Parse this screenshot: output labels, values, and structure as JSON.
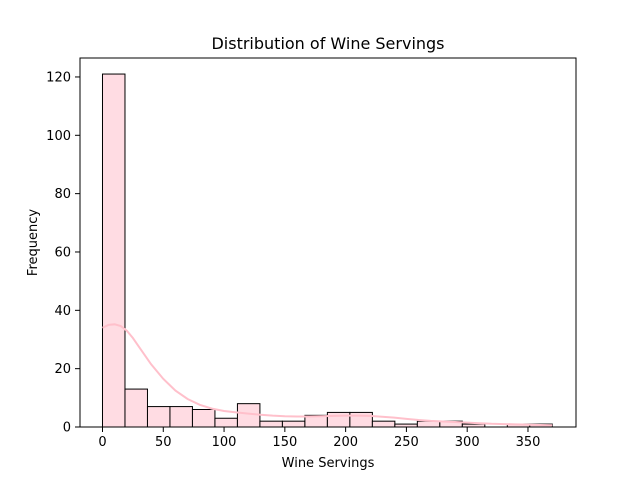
{
  "chart_data": {
    "type": "bar",
    "title": "Distribution of Wine Servings",
    "xlabel": "Wine Servings",
    "ylabel": "Frequency",
    "xlim": [
      -18.5,
      389.5
    ],
    "ylim": [
      0,
      126.5
    ],
    "x_ticks": [
      0,
      50,
      100,
      150,
      200,
      250,
      300,
      350
    ],
    "y_ticks": [
      0,
      20,
      40,
      60,
      80,
      100,
      120
    ],
    "bin_edges": [
      0,
      18.5,
      37,
      55.5,
      74,
      92.5,
      111,
      129.5,
      148,
      166.5,
      185,
      203.5,
      222,
      240.5,
      259,
      277.5,
      296,
      314.5,
      333,
      351.5,
      370
    ],
    "counts": [
      121,
      13,
      7,
      7,
      6,
      3,
      8,
      2,
      2,
      4,
      5,
      5,
      2,
      1,
      2,
      2,
      1,
      0,
      1,
      1
    ],
    "kde": {
      "x": [
        0,
        5,
        10,
        15,
        20,
        25,
        30,
        40,
        50,
        60,
        70,
        80,
        90,
        100,
        110,
        120,
        130,
        140,
        150,
        160,
        170,
        180,
        190,
        200,
        210,
        220,
        230,
        240,
        250,
        260,
        270,
        280,
        290,
        300,
        310,
        320,
        330,
        340,
        350,
        360,
        370
      ],
      "y": [
        34,
        35,
        35.2,
        34.6,
        33,
        30.5,
        27.5,
        21.5,
        16.5,
        12.5,
        9.6,
        7.6,
        6.3,
        5.5,
        5,
        4.6,
        4.2,
        3.9,
        3.7,
        3.6,
        3.6,
        3.7,
        3.8,
        3.9,
        3.9,
        3.8,
        3.5,
        3.2,
        2.8,
        2.4,
        2.1,
        1.9,
        1.7,
        1.5,
        1.3,
        1.1,
        1,
        0.9,
        0.8,
        0.7,
        0.6
      ]
    },
    "colors": {
      "bar_fill": "#ffdce3",
      "bar_edge": "#000000",
      "kde_line": "#ffc0cb"
    },
    "grid": false,
    "legend": "none"
  }
}
